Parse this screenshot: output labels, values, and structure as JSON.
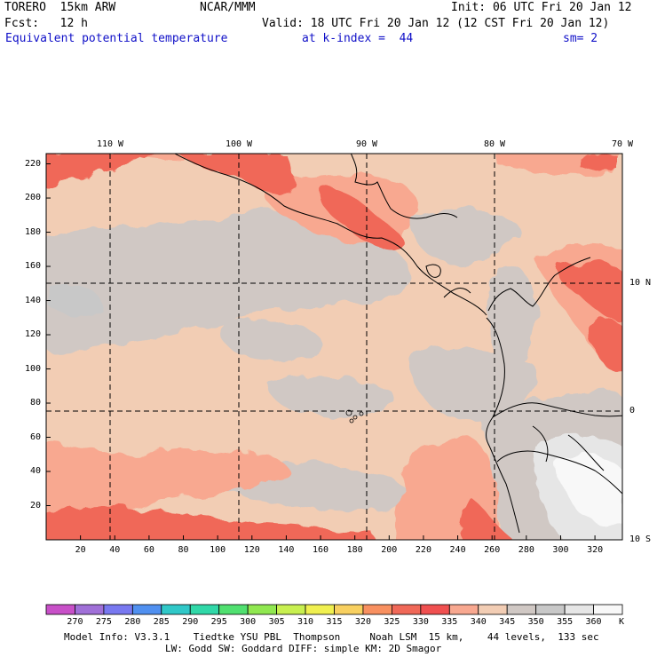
{
  "header": {
    "model": "TORERO  15km ARW",
    "org": "NCAR/MMM",
    "init": "Init: 06 UTC Fri 20 Jan 12",
    "fcst": "Fcst:   12 h",
    "valid": "Valid: 18 UTC Fri 20 Jan 12 (12 CST Fri 20 Jan 12)",
    "field": "Equivalent potential temperature",
    "level": "at k-index =  44",
    "smooth": "sm= 2"
  },
  "map": {
    "lon_labels": [
      "110 W",
      "100 W",
      "90 W",
      "80 W",
      "70 W"
    ],
    "lat_labels": [
      "10 N",
      "0",
      "10 S"
    ],
    "y_ticks": [
      "220",
      "200",
      "180",
      "160",
      "140",
      "120",
      "100",
      "80",
      "60",
      "40",
      "20"
    ],
    "x_ticks": [
      "20",
      "40",
      "60",
      "80",
      "100",
      "120",
      "140",
      "160",
      "180",
      "200",
      "220",
      "240",
      "260",
      "280",
      "300",
      "320"
    ],
    "grid_extent": {
      "x": [
        0,
        336
      ],
      "y": [
        0,
        226
      ]
    }
  },
  "legend": {
    "labels": [
      "270",
      "275",
      "280",
      "285",
      "290",
      "295",
      "300",
      "305",
      "310",
      "315",
      "320",
      "325",
      "330",
      "335",
      "340",
      "345",
      "350",
      "355",
      "360"
    ],
    "unit": "K",
    "colors": [
      "#c850c8",
      "#a070d8",
      "#7878f0",
      "#5090f0",
      "#30c8c8",
      "#30d8a8",
      "#50e070",
      "#90e850",
      "#c8f050",
      "#f0f050",
      "#f8d060",
      "#f89060",
      "#f06858",
      "#f05050",
      "#f8a890",
      "#f2cdb4",
      "#d0c8c4",
      "#c8c8c8",
      "#e6e6e6",
      "#f8f8f8"
    ]
  },
  "footer": {
    "line1": "Model Info: V3.3.1    Tiedtke YSU PBL  Thompson     Noah LSM  15 km,    44 levels,  133 sec",
    "line2": "LW: Godd SW: Goddard DIFF: simple KM: 2D Smagor"
  }
}
